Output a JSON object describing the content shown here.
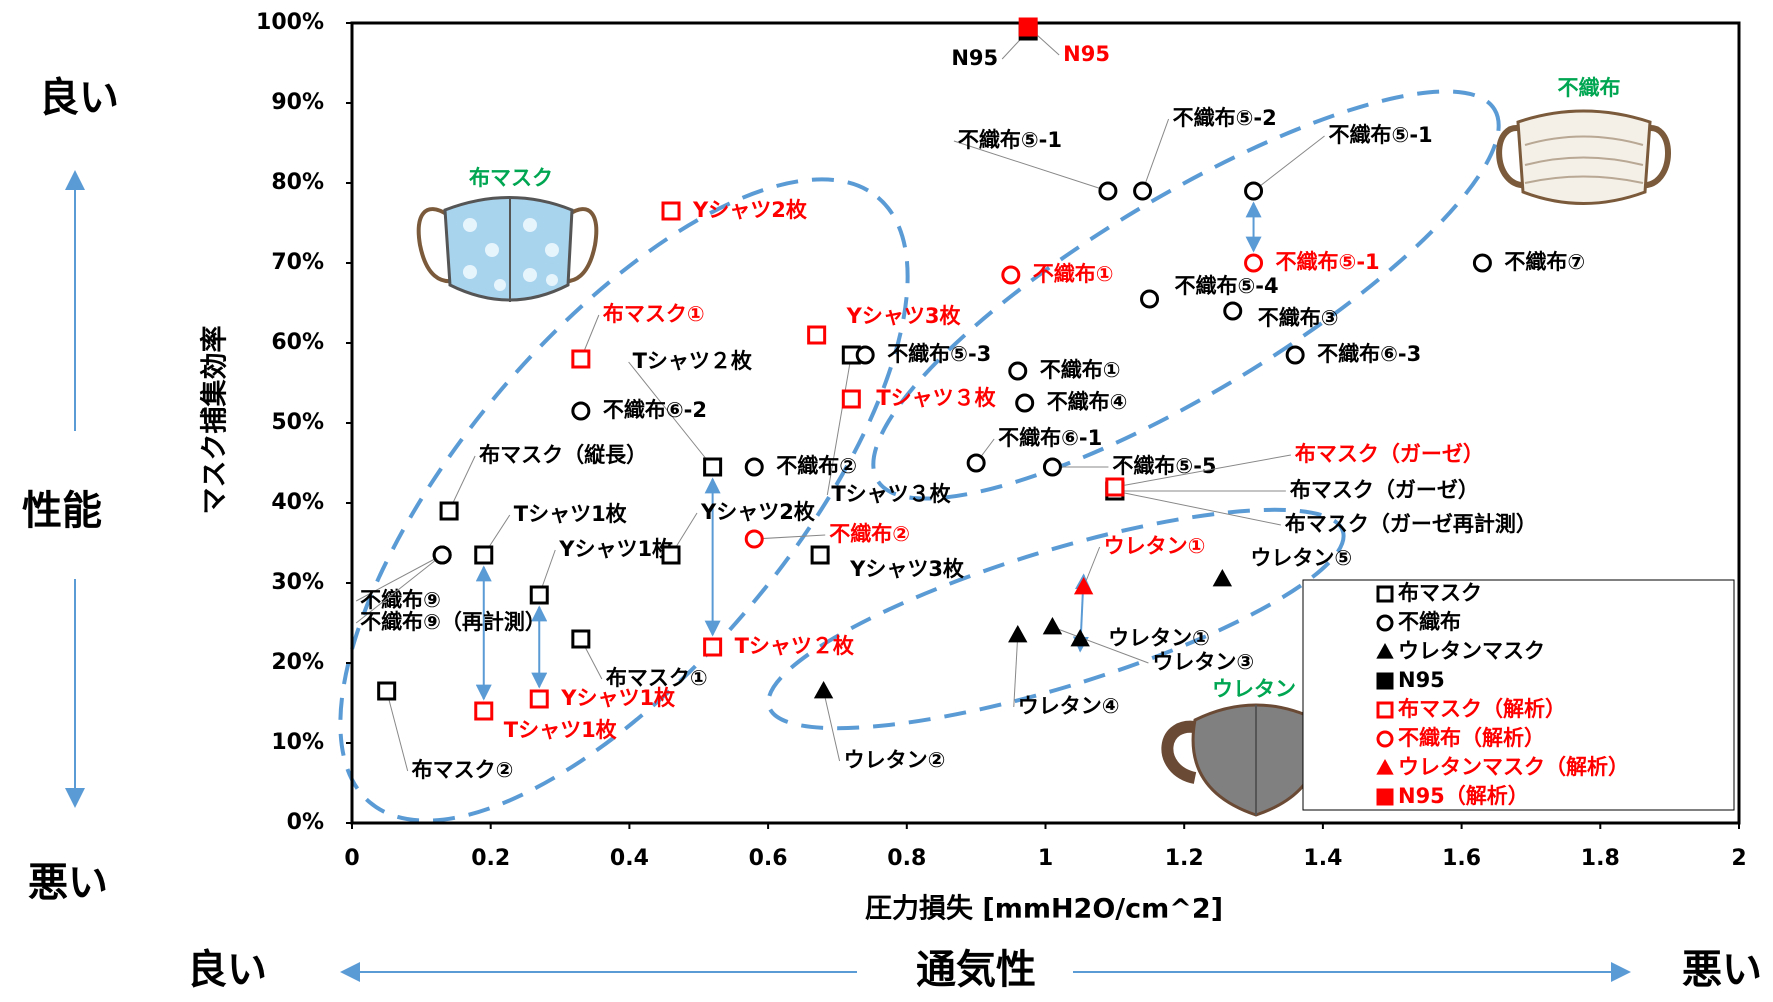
{
  "chart_data": {
    "type": "scatter",
    "x_label": "圧力損失 [mmH2O/cm^2]",
    "y_label": "マスク捕集効率",
    "side_labels": {
      "y_good": "良い",
      "y_mid": "性能",
      "y_bad": "悪い",
      "x_good": "良い",
      "x_mid": "通気性",
      "x_bad": "悪い"
    },
    "illustration_labels": [
      "布マスク",
      "不織布",
      "ウレタン"
    ],
    "xlim": [
      0,
      2
    ],
    "xticks": [
      0,
      0.2,
      0.4,
      0.6,
      0.8,
      1,
      1.2,
      1.4,
      1.6,
      1.8,
      2
    ],
    "ylim": [
      0,
      100
    ],
    "yticks": [
      {
        "value": 0,
        "label": "0%"
      },
      {
        "value": 10,
        "label": "10%"
      },
      {
        "value": 20,
        "label": "20%"
      },
      {
        "value": 30,
        "label": "30%"
      },
      {
        "value": 40,
        "label": "40%"
      },
      {
        "value": 50,
        "label": "50%"
      },
      {
        "value": 60,
        "label": "60%"
      },
      {
        "value": 70,
        "label": "70%"
      },
      {
        "value": 80,
        "label": "80%"
      },
      {
        "value": 90,
        "label": "90%"
      },
      {
        "value": 100,
        "label": "100%"
      }
    ],
    "grid": false,
    "legend": "lower right",
    "series": [
      {
        "name": "布マスク",
        "color": "#000000",
        "marker": "square",
        "filled": false,
        "x": [
          0.14,
          0.19,
          0.27,
          0.33,
          0.05,
          0.52,
          0.46,
          0.675,
          0.72,
          1.1,
          1.1
        ],
        "values": [
          39,
          33.5,
          28.5,
          23,
          16.5,
          44.5,
          33.5,
          33.5,
          58.5,
          41.5,
          41.5
        ],
        "labels": [
          "布マスク（縦長）",
          "Tシャツ1枚",
          "Yシャツ1枚",
          "布マスク①",
          "布マスク②",
          "Tシャツ２枚",
          "Yシャツ2枚",
          "Yシャツ3枚",
          "Tシャツ３枚",
          "布マスク（ガーゼ）",
          "布マスク（ガーゼ再計測）"
        ]
      },
      {
        "name": "不織布",
        "color": "#000000",
        "marker": "circle",
        "filled": false,
        "x": [
          0.13,
          0.13,
          0.33,
          0.58,
          0.9,
          0.96,
          0.97,
          0.74,
          1.01,
          1.09,
          1.14,
          1.3,
          1.15,
          1.27,
          1.36,
          1.63
        ],
        "values": [
          33.5,
          33.5,
          51.5,
          44.5,
          45,
          56.5,
          52.5,
          58.5,
          44.5,
          79,
          79,
          79,
          65.5,
          64,
          58.5,
          70
        ],
        "labels": [
          "不織布⑨",
          "不織布⑨（再計測）",
          "不織布⑥-2",
          "不織布②",
          "不織布⑥-1",
          "不織布①",
          "不織布④",
          "不織布⑤-3",
          "不織布⑤-5",
          "不織布⑤-1",
          "不織布⑤-2",
          "不織布⑤-1",
          "不織布⑤-4",
          "不織布③",
          "不織布⑥-3",
          "不織布⑦"
        ]
      },
      {
        "name": "ウレタンマスク",
        "color": "#000000",
        "marker": "triangle",
        "filled": true,
        "x": [
          0.68,
          0.96,
          1.01,
          1.05,
          1.255
        ],
        "values": [
          16.5,
          23.5,
          24.5,
          23,
          30.5
        ],
        "labels": [
          "ウレタン②",
          "ウレタン④",
          "ウレタン③",
          "ウレタン①",
          "ウレタン⑤"
        ]
      },
      {
        "name": "N95",
        "color": "#000000",
        "marker": "square",
        "filled": true,
        "x": [
          0.975
        ],
        "values": [
          99
        ],
        "labels": [
          "N95"
        ]
      },
      {
        "name": "布マスク（解析）",
        "color": "#ff0000",
        "marker": "square",
        "filled": false,
        "x": [
          0.46,
          0.33,
          0.67,
          0.72,
          1.1,
          0.52,
          0.19,
          0.27
        ],
        "values": [
          76.5,
          58,
          61,
          53,
          42,
          22,
          14,
          15.5
        ],
        "labels": [
          "Yシャツ2枚",
          "布マスク①",
          "Yシャツ3枚",
          "Tシャツ３枚",
          "布マスク（ガーゼ）",
          "Tシャツ２枚",
          "Tシャツ1枚",
          "Yシャツ1枚"
        ]
      },
      {
        "name": "不織布（解析）",
        "color": "#ff0000",
        "marker": "circle",
        "filled": false,
        "x": [
          0.95,
          1.3,
          0.58
        ],
        "values": [
          68.5,
          70,
          35.5
        ],
        "labels": [
          "不織布①",
          "不織布⑤-1",
          "不織布②"
        ]
      },
      {
        "name": "ウレタンマスク（解析）",
        "color": "#ff0000",
        "marker": "triangle",
        "filled": true,
        "x": [
          1.055
        ],
        "values": [
          29.5
        ],
        "labels": [
          "ウレタン①"
        ]
      },
      {
        "name": "N95（解析）",
        "color": "#ff0000",
        "marker": "square",
        "filled": true,
        "x": [
          0.975
        ],
        "values": [
          99.5
        ],
        "labels": [
          "N95"
        ]
      }
    ]
  }
}
